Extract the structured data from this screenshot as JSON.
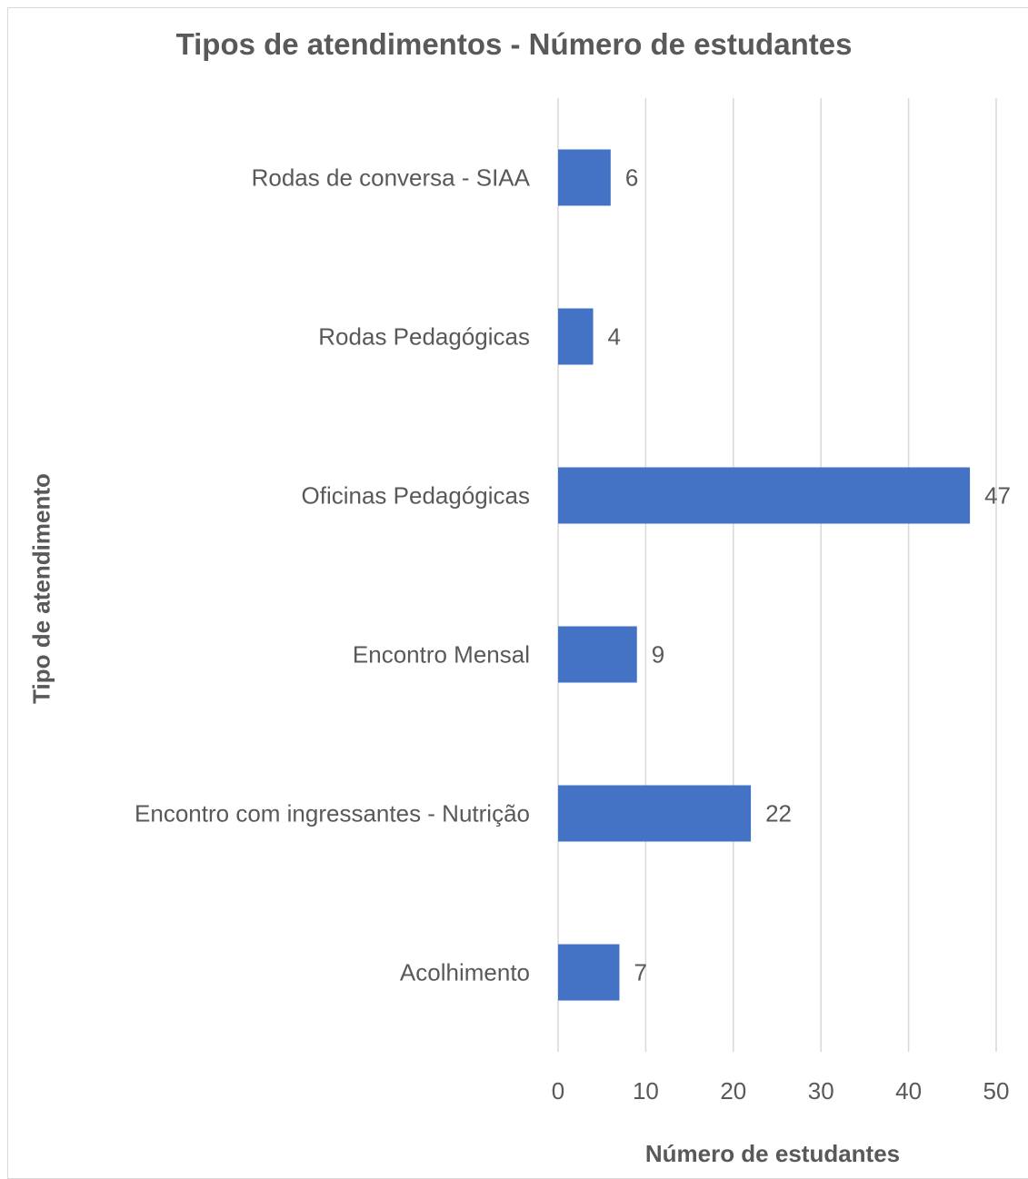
{
  "chart_data": {
    "type": "bar",
    "orientation": "horizontal",
    "title": "Tipos de atendimentos - Número de estudantes",
    "xlabel": "Número de estudantes",
    "ylabel": "Tipo de atendimento",
    "categories": [
      "Rodas de conversa - SIAA",
      "Rodas Pedagógicas",
      "Oficinas Pedagógicas",
      "Encontro Mensal",
      "Encontro com ingressantes - Nutrição",
      "Acolhimento"
    ],
    "values": [
      6,
      4,
      47,
      9,
      22,
      7
    ],
    "data_labels": [
      "6",
      "4",
      "47",
      "9",
      "22",
      "7"
    ],
    "xlim": [
      0,
      50
    ],
    "xticks": [
      "0",
      "10",
      "20",
      "30",
      "40",
      "50"
    ],
    "grid": "vertical",
    "legend": "none",
    "colors": {
      "bar": "#4472c4",
      "grid": "#d9d9d9",
      "text": "#595959"
    }
  }
}
